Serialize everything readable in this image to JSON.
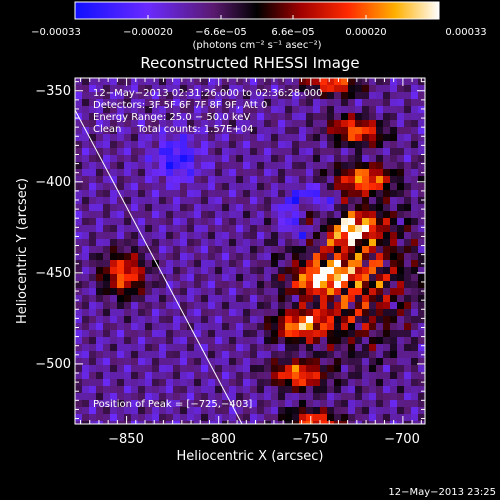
{
  "colorbar": {
    "ticks": [
      "−0.00033",
      "−0.00020",
      "−6.6e−05",
      "6.6e−05",
      "0.00020",
      "0.00033"
    ],
    "unit_label": "(photons cm⁻² s⁻¹ asec⁻²)",
    "min": -0.00033,
    "max": 0.00033
  },
  "title": "Reconstructed RHESSI Image",
  "info_lines": [
    "12−May−2013 02:31:26.000 to 02:36:28.000",
    "Detectors: 3F 5F 6F 7F 8F 9F, Att 0",
    "Energy Range: 25.0 − 50.0 keV",
    "Clean     Total counts: 1.57E+04"
  ],
  "peak_label": "Position of Peak = [−725,−403]",
  "axes": {
    "xlabel": "Heliocentric X (arcsec)",
    "ylabel": "Heliocentric Y (arcsec)",
    "xlim": [
      -878,
      -688
    ],
    "ylim": [
      -533,
      -343
    ],
    "xticks": [
      -850,
      -800,
      -750,
      -700
    ],
    "yticks": [
      -350,
      -400,
      -450,
      -500
    ],
    "xtick_labels": [
      "−850",
      "−800",
      "−750",
      "−700"
    ],
    "ytick_labels": [
      "−350",
      "−400",
      "−450",
      "−500"
    ]
  },
  "timestamp": "12−May−2013 23:25"
}
